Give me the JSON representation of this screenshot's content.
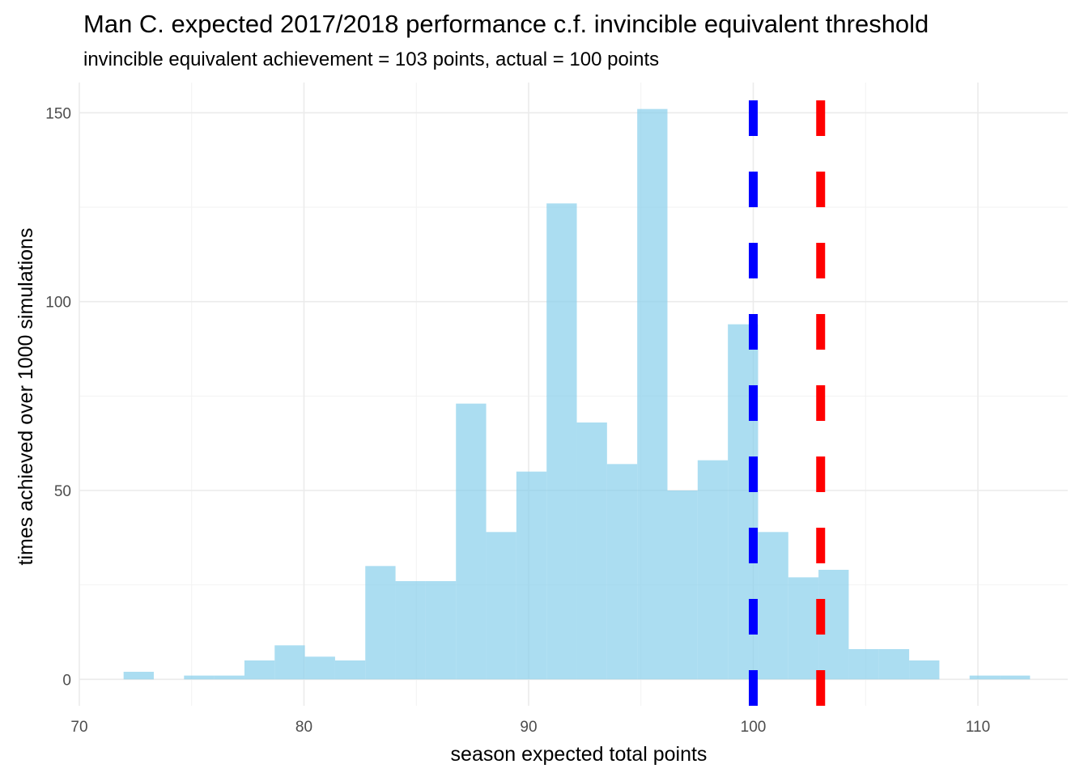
{
  "chart_data": {
    "type": "bar",
    "title": "Man C. expected 2017/2018 performance c.f. invincible equivalent threshold",
    "subtitle": "invincible equivalent achievement = 103 points, actual = 100 points",
    "xlabel": "season expected total points",
    "ylabel": "times achieved over 1000 simulations",
    "xlim": [
      70,
      114
    ],
    "ylim": [
      -7,
      158
    ],
    "x_ticks": [
      70,
      80,
      90,
      100,
      110
    ],
    "y_ticks": [
      0,
      50,
      100,
      150
    ],
    "grid": true,
    "bins": {
      "start": 71.97,
      "width": 1.345,
      "counts": [
        2,
        0,
        1,
        1,
        5,
        9,
        6,
        5,
        30,
        26,
        26,
        73,
        39,
        55,
        126,
        68,
        57,
        151,
        50,
        58,
        94,
        39,
        27,
        29,
        8,
        8,
        5,
        0,
        1,
        1
      ]
    },
    "bar_color": "#87CEEB",
    "vlines": [
      {
        "x": 100,
        "color": "#0000FF",
        "style": "dashed"
      },
      {
        "x": 103,
        "color": "#FF0000",
        "style": "dashed"
      }
    ]
  }
}
